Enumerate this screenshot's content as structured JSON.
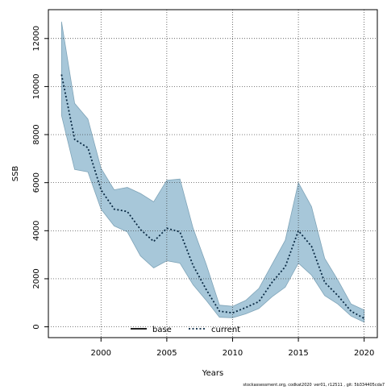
{
  "chart_data": {
    "type": "area",
    "xlabel": "Years",
    "ylabel": "SSB",
    "xlim": [
      1996,
      2021
    ],
    "ylim": [
      -450,
      13200
    ],
    "x_ticks": [
      2000,
      2005,
      2010,
      2015,
      2020
    ],
    "y_ticks": [
      0,
      2000,
      4000,
      6000,
      8000,
      10000,
      12000
    ],
    "grid": true,
    "legend_position": "bottom-center",
    "colors": {
      "band_fill": "#a7c7d9",
      "band_edge": "#7fa4b8",
      "base_line": "#000000",
      "current_line": "#0a2a44",
      "grid": "#333333"
    },
    "x": [
      1997,
      1998,
      1999,
      2000,
      2001,
      2002,
      2003,
      2004,
      2005,
      2006,
      2007,
      2008,
      2009,
      2010,
      2011,
      2012,
      2013,
      2014,
      2015,
      2016,
      2017,
      2018,
      2019,
      2020
    ],
    "series": [
      {
        "name": "current",
        "style": "dotted",
        "values": [
          10500,
          7800,
          7450,
          5700,
          4900,
          4800,
          4050,
          3550,
          4100,
          3950,
          2550,
          1550,
          650,
          580,
          800,
          1050,
          1850,
          2500,
          4000,
          3350,
          1850,
          1300,
          650,
          350
        ]
      }
    ],
    "band": {
      "upper": [
        12700,
        9300,
        8650,
        6600,
        5700,
        5800,
        5550,
        5200,
        6100,
        6150,
        4100,
        2600,
        900,
        850,
        1100,
        1600,
        2600,
        3600,
        6000,
        5000,
        2850,
        1950,
        950,
        700
      ],
      "lower": [
        8800,
        6550,
        6450,
        4900,
        4200,
        3950,
        2950,
        2450,
        2750,
        2650,
        1750,
        1100,
        400,
        380,
        540,
        760,
        1250,
        1650,
        2650,
        2150,
        1300,
        950,
        450,
        190
      ]
    },
    "legend": [
      {
        "label": "base",
        "style": "solid"
      },
      {
        "label": "current",
        "style": "dotted"
      }
    ],
    "credit": "stockassessment.org, codkat2020_ver01, r12511 , git: 5b334405cda7"
  }
}
